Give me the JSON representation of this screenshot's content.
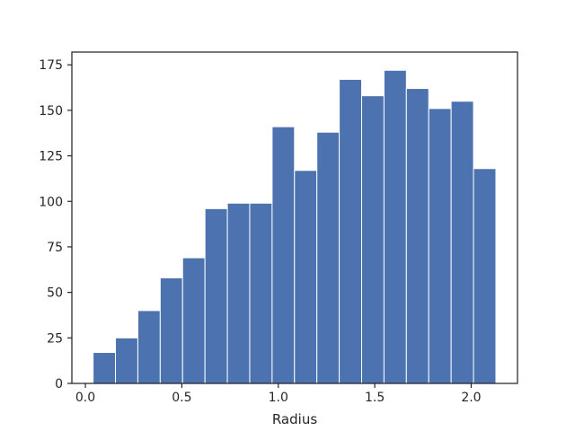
{
  "chart_data": {
    "type": "bar",
    "title": "",
    "xlabel": "Radius",
    "ylabel": "",
    "grid": false,
    "legend": "none",
    "xlim": [
      -0.07,
      2.24
    ],
    "ylim": [
      0,
      182
    ],
    "bar_color": "#4c72b0",
    "bar_edge_color": "#ffffff",
    "bin_edges": [
      0.04,
      0.156,
      0.272,
      0.388,
      0.504,
      0.62,
      0.736,
      0.852,
      0.968,
      1.084,
      1.2,
      1.316,
      1.432,
      1.548,
      1.664,
      1.78,
      1.896,
      2.012,
      2.128
    ],
    "values": [
      17,
      25,
      40,
      58,
      69,
      96,
      99,
      99,
      141,
      117,
      138,
      167,
      158,
      172,
      162,
      151,
      155,
      118
    ],
    "x_ticks": [
      {
        "value": 0.0,
        "label": "0.0"
      },
      {
        "value": 0.5,
        "label": "0.5"
      },
      {
        "value": 1.0,
        "label": "1.0"
      },
      {
        "value": 1.5,
        "label": "1.5"
      },
      {
        "value": 2.0,
        "label": "2.0"
      }
    ],
    "y_ticks": [
      {
        "value": 0,
        "label": "0"
      },
      {
        "value": 25,
        "label": "25"
      },
      {
        "value": 50,
        "label": "50"
      },
      {
        "value": 75,
        "label": "75"
      },
      {
        "value": 100,
        "label": "100"
      },
      {
        "value": 125,
        "label": "125"
      },
      {
        "value": 150,
        "label": "150"
      },
      {
        "value": 175,
        "label": "175"
      }
    ]
  }
}
